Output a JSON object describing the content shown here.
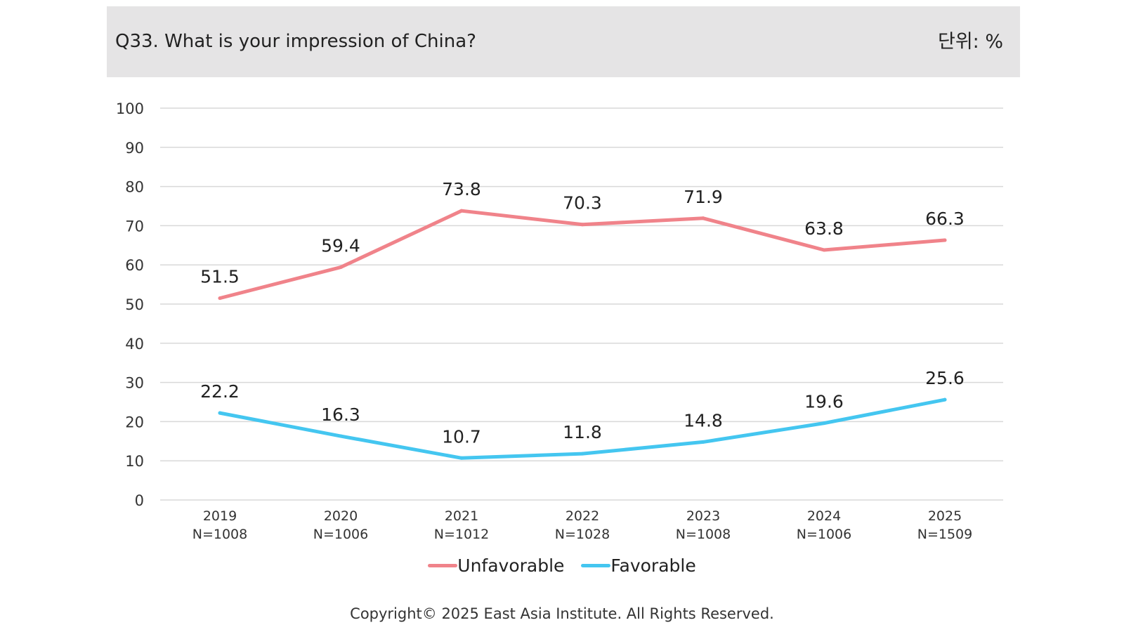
{
  "header": {
    "title": "Q33. What is your impression of China?",
    "unit": "단위: %"
  },
  "chart_data": {
    "type": "line",
    "title": "Q33. What is your impression of China?",
    "unit_label": "단위: %",
    "categories": [
      "2019",
      "2020",
      "2021",
      "2022",
      "2023",
      "2024",
      "2025"
    ],
    "sample_sizes": [
      "N=1008",
      "N=1006",
      "N=1012",
      "N=1028",
      "N=1008",
      "N=1006",
      "N=1509"
    ],
    "ylim": [
      0,
      100
    ],
    "yticks": [
      0,
      10,
      20,
      30,
      40,
      50,
      60,
      70,
      80,
      90,
      100
    ],
    "grid": true,
    "legend_position": "bottom",
    "series": [
      {
        "name": "Unfavorable",
        "color": "#f0838a",
        "values": [
          51.5,
          59.4,
          73.8,
          70.3,
          71.9,
          63.8,
          66.3
        ]
      },
      {
        "name": "Favorable",
        "color": "#44c6f0",
        "values": [
          22.2,
          16.3,
          10.7,
          11.8,
          14.8,
          19.6,
          25.6
        ]
      }
    ]
  },
  "footer": {
    "copyright": "Copyright© 2025 East Asia Institute. All Rights Reserved."
  }
}
